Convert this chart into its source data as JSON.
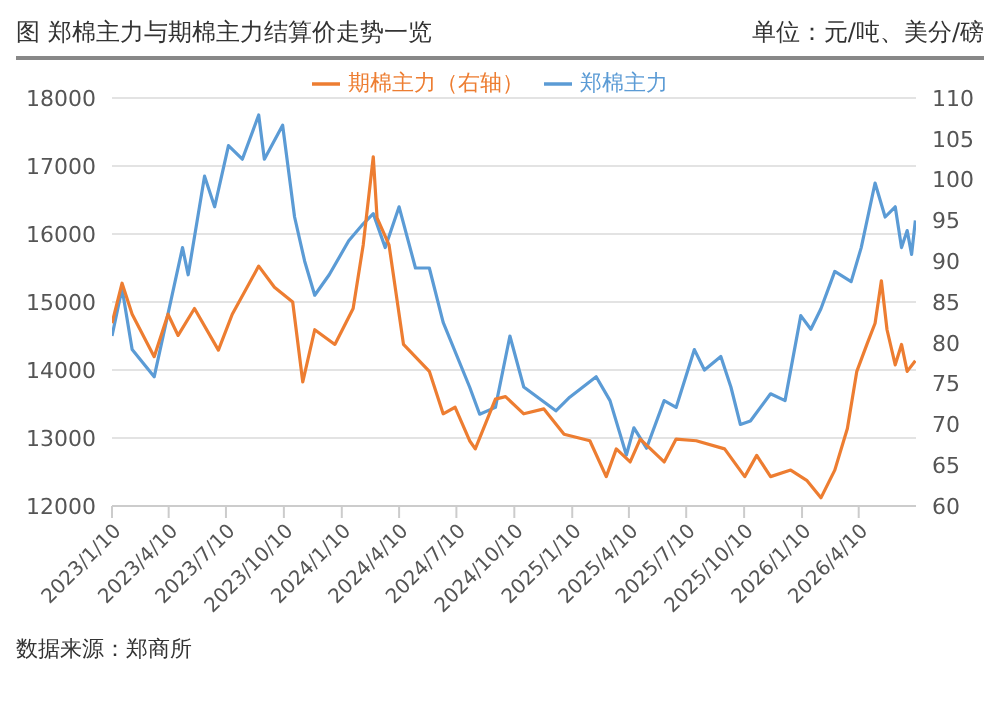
{
  "chart_data": {
    "type": "line",
    "title": "图 郑棉主力与期棉主力结算价走势一览",
    "subtitle": "单位：元/吨、美分/磅",
    "annotations": [
      "数据来源：郑商所"
    ],
    "legend": "top",
    "grid": "y",
    "marker": "none",
    "line_style": "solid",
    "xlim": [
      "2023-01-10",
      "2026-07-10"
    ],
    "xticks": [
      {
        "value": "2023-01-10",
        "label": "2023/1/10"
      },
      {
        "value": "2023-04-10",
        "label": "2023/4/10"
      },
      {
        "value": "2023-07-10",
        "label": "2023/7/10"
      },
      {
        "value": "2023-10-10",
        "label": "2023/10/10"
      },
      {
        "value": "2024-01-10",
        "label": "2024/1/10"
      },
      {
        "value": "2024-04-10",
        "label": "2024/4/10"
      },
      {
        "value": "2024-07-10",
        "label": "2024/7/10"
      },
      {
        "value": "2024-10-10",
        "label": "2024/10/10"
      },
      {
        "value": "2025-01-10",
        "label": "2025/1/10"
      },
      {
        "value": "2025-04-10",
        "label": "2025/4/10"
      },
      {
        "value": "2025-07-10",
        "label": "2025/7/10"
      },
      {
        "value": "2025-10-10",
        "label": "2025/10/10"
      },
      {
        "value": "2026-01-10",
        "label": "2026/1/10"
      },
      {
        "value": "2026-04-10",
        "label": "2026/4/10"
      }
    ],
    "ylim": [
      12000,
      18000
    ],
    "yticks": [
      12000,
      13000,
      14000,
      15000,
      16000,
      17000,
      18000
    ],
    "y2lim": [
      60,
      110
    ],
    "y2ticks": [
      60,
      65,
      70,
      75,
      80,
      85,
      90,
      95,
      100,
      105,
      110
    ],
    "series": [
      {
        "name": "郑棉主力",
        "color": "#5b9bd5",
        "x": [
          "2023-01-10",
          "2023-01-26",
          "2023-02-11",
          "2023-03-18",
          "2023-05-02",
          "2023-05-11",
          "2023-06-06",
          "2023-06-22",
          "2023-07-14",
          "2023-08-05",
          "2023-08-31",
          "2023-09-09",
          "2023-10-08",
          "2023-10-27",
          "2023-11-12",
          "2023-11-28",
          "2023-12-21",
          "2024-01-21",
          "2024-02-13",
          "2024-02-29",
          "2024-03-19",
          "2024-04-10",
          "2024-05-06",
          "2024-05-28",
          "2024-06-19",
          "2024-07-31",
          "2024-08-16",
          "2024-09-10",
          "2024-10-03",
          "2024-10-25",
          "2024-12-15",
          "2025-01-06",
          "2025-02-17",
          "2025-03-11",
          "2025-04-06",
          "2025-04-18",
          "2025-05-08",
          "2025-06-05",
          "2025-06-24",
          "2025-07-23",
          "2025-08-08",
          "2025-09-03",
          "2025-09-19",
          "2025-10-04",
          "2025-10-20",
          "2025-11-21",
          "2025-12-14",
          "2026-01-08",
          "2026-01-24",
          "2026-02-09",
          "2026-03-03",
          "2026-03-29",
          "2026-04-14",
          "2026-05-06",
          "2026-05-22",
          "2026-06-07",
          "2026-06-17",
          "2026-06-26",
          "2026-07-03",
          "2026-07-09"
        ],
        "values": [
          14500,
          15200,
          14300,
          13900,
          15800,
          15400,
          16850,
          16400,
          17300,
          17100,
          17750,
          17100,
          17600,
          16250,
          15600,
          15100,
          15400,
          15900,
          16150,
          16300,
          15800,
          16400,
          15500,
          15500,
          14700,
          13750,
          13350,
          13450,
          14500,
          13750,
          13400,
          13600,
          13900,
          13550,
          12750,
          13150,
          12850,
          13550,
          13450,
          14300,
          14000,
          14200,
          13750,
          13200,
          13250,
          13650,
          13550,
          14800,
          14600,
          14900,
          15450,
          15300,
          15800,
          16750,
          16250,
          16400,
          15800,
          16050,
          15700,
          16200
        ]
      },
      {
        "name": "期棉主力（右轴）",
        "color": "#ed7d31",
        "axis": "y2",
        "x": [
          "2023-01-10",
          "2023-01-26",
          "2023-02-11",
          "2023-03-18",
          "2023-04-09",
          "2023-04-25",
          "2023-05-21",
          "2023-06-28",
          "2023-07-20",
          "2023-08-31",
          "2023-09-25",
          "2023-10-24",
          "2023-11-09",
          "2023-11-28",
          "2023-12-30",
          "2024-01-28",
          "2024-02-13",
          "2024-02-29",
          "2024-03-06",
          "2024-03-25",
          "2024-04-17",
          "2024-05-28",
          "2024-06-19",
          "2024-07-08",
          "2024-07-31",
          "2024-08-09",
          "2024-09-10",
          "2024-09-26",
          "2024-10-25",
          "2024-11-26",
          "2024-12-28",
          "2025-02-07",
          "2025-03-05",
          "2025-03-21",
          "2025-04-12",
          "2025-04-28",
          "2025-06-05",
          "2025-06-24",
          "2025-07-26",
          "2025-09-09",
          "2025-10-11",
          "2025-10-30",
          "2025-11-21",
          "2025-12-23",
          "2026-01-18",
          "2026-02-09",
          "2026-03-03",
          "2026-03-23",
          "2026-04-07",
          "2026-04-23",
          "2026-05-06",
          "2026-05-16",
          "2026-05-25",
          "2026-06-07",
          "2026-06-17",
          "2026-06-26",
          "2026-07-09"
        ],
        "values": [
          82.4,
          87.3,
          83.5,
          78.3,
          83.5,
          80.9,
          84.2,
          79.1,
          83.5,
          89.4,
          86.8,
          85,
          75.2,
          81.6,
          79.8,
          84.2,
          92,
          102.8,
          95.3,
          92,
          79.8,
          76.5,
          71.3,
          72.1,
          68,
          67,
          73.1,
          73.4,
          71.3,
          71.9,
          68.8,
          68,
          63.6,
          67,
          65.4,
          68.2,
          65.4,
          68.2,
          68,
          67,
          63.6,
          66.2,
          63.6,
          64.4,
          63.1,
          61,
          64.4,
          69.5,
          76.5,
          79.8,
          82.4,
          87.6,
          81.6,
          77.3,
          79.8,
          76.5,
          77.8
        ]
      }
    ]
  }
}
